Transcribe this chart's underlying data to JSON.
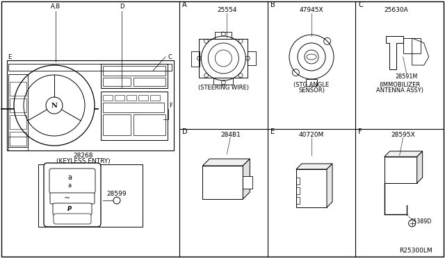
{
  "bg_color": "#ffffff",
  "line_color": "#000000",
  "text_color": "#000000",
  "ref_number": "R25300LM",
  "panel_ids_top": [
    "A",
    "B",
    "C"
  ],
  "panel_ids_bot": [
    "D",
    "E",
    "F"
  ],
  "parts_top": [
    "25554",
    "47945X",
    "25630A"
  ],
  "parts_bot": [
    "284B1",
    "40720M",
    "28595X"
  ],
  "labels_top": [
    "(STEERING WIRE)",
    "(STG ANGLE\nSENSOR)",
    "(IMMOBILIZER\nANTENNA ASSY)"
  ],
  "extra_label_c": "28591M",
  "extra_label_f": "25389D",
  "keyless_part1": "28268",
  "keyless_part2": "(KEYLESS ENTRY)",
  "keyless_sub": "28599",
  "diag_labels": [
    "A,B",
    "D",
    "C",
    "E",
    "F"
  ]
}
